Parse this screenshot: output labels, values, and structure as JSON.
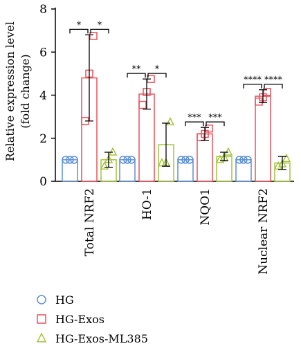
{
  "chart_data": {
    "type": "bar",
    "ylabel_line1": "Relative expression level",
    "ylabel_line2": "(fold change)",
    "ylim": [
      0,
      8
    ],
    "yticks": [
      "0",
      "2",
      "4",
      "6",
      "8"
    ],
    "categories": [
      "Total NRF2",
      "HO-1",
      "NQO1",
      "Nuclear NRF2"
    ],
    "series": [
      {
        "name": "HG",
        "color": "#5b8fd6",
        "marker": "circle",
        "values": [
          1.0,
          1.0,
          1.0,
          1.0
        ],
        "errors": [
          0,
          0,
          0,
          0
        ],
        "points": [
          [
            1.0,
            1.0,
            1.0
          ],
          [
            1.0,
            1.0,
            1.0
          ],
          [
            1.0,
            1.0,
            1.0
          ],
          [
            1.0,
            1.0,
            1.0
          ]
        ]
      },
      {
        "name": "HG-Exos",
        "color": "#e8505b",
        "marker": "square",
        "values": [
          4.8,
          4.05,
          2.2,
          3.95
        ],
        "errors": [
          2.0,
          0.7,
          0.3,
          0.3
        ],
        "points": [
          [
            2.8,
            5.0,
            6.75
          ],
          [
            3.55,
            4.15,
            4.75
          ],
          [
            2.05,
            2.2,
            2.45
          ],
          [
            3.7,
            3.9,
            4.15
          ]
        ]
      },
      {
        "name": "HG-Exos-ML385",
        "color": "#a3c43a",
        "marker": "triangle",
        "values": [
          1.0,
          1.7,
          1.15,
          0.85
        ],
        "errors": [
          0.35,
          1.0,
          0.2,
          0.3
        ],
        "points": [
          [
            0.7,
            1.0,
            1.35
          ],
          [
            0.85,
            0.85,
            2.75
          ],
          [
            1.0,
            1.1,
            1.35
          ],
          [
            0.7,
            0.8,
            1.05
          ]
        ]
      }
    ],
    "significance": [
      {
        "category": 0,
        "left": "*",
        "right": "*"
      },
      {
        "category": 1,
        "left": "**",
        "right": "*"
      },
      {
        "category": 2,
        "left": "***",
        "right": "***"
      },
      {
        "category": 3,
        "left": "****",
        "right": "****"
      }
    ],
    "legend_position": "bottom"
  }
}
